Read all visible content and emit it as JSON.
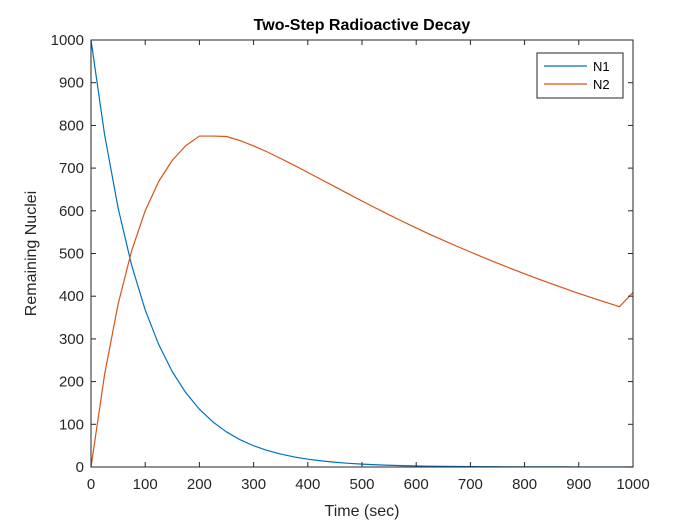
{
  "chart_data": {
    "type": "line",
    "title": "Two-Step Radioactive Decay",
    "xlabel": "Time (sec)",
    "ylabel": "Remaining Nuclei",
    "xlim": [
      0,
      1000
    ],
    "ylim": [
      0,
      1000
    ],
    "xticks": [
      0,
      100,
      200,
      300,
      400,
      500,
      600,
      700,
      800,
      900,
      1000
    ],
    "yticks": [
      0,
      100,
      200,
      300,
      400,
      500,
      600,
      700,
      800,
      900,
      1000
    ],
    "grid": false,
    "legend": "top-right",
    "x": [
      0,
      25,
      50,
      75,
      100,
      125,
      150,
      175,
      200,
      225,
      250,
      275,
      300,
      325,
      350,
      375,
      400,
      425,
      450,
      475,
      500,
      525,
      550,
      575,
      600,
      625,
      650,
      675,
      700,
      725,
      750,
      775,
      800,
      825,
      850,
      875,
      900,
      925,
      950,
      975,
      1000
    ],
    "series": [
      {
        "name": "N1",
        "color": "#0072BD",
        "values": [
          1000,
          778.8,
          606.5,
          472.4,
          367.9,
          286.5,
          223.1,
          173.8,
          135.3,
          105.4,
          82.1,
          63.9,
          49.8,
          38.8,
          30.2,
          23.5,
          18.3,
          14.3,
          11.1,
          8.7,
          6.7,
          5.2,
          4.1,
          3.2,
          2.5,
          1.9,
          1.5,
          1.2,
          0.9,
          0.7,
          0.6,
          0.4,
          0.3,
          0.3,
          0.2,
          0.2,
          0.1,
          0.1,
          0.1,
          0.1,
          0
        ]
      },
      {
        "name": "N2",
        "color": "#D95319",
        "values": [
          0,
          216.3,
          381.4,
          506.5,
          600.1,
          668.9,
          718.4,
          752.7,
          775.0,
          775.0,
          774.0,
          764.5,
          752.0,
          738.0,
          722.5,
          706.5,
          690.0,
          673.0,
          656.5,
          639.5,
          623.0,
          606.6,
          590.6,
          575.0,
          559.9,
          545.0,
          530.8,
          517.0,
          503.5,
          490.2,
          477.3,
          464.7,
          452.4,
          440.5,
          428.9,
          417.6,
          406.6,
          396.0,
          385.6,
          375.5,
          409.0
        ]
      }
    ]
  }
}
